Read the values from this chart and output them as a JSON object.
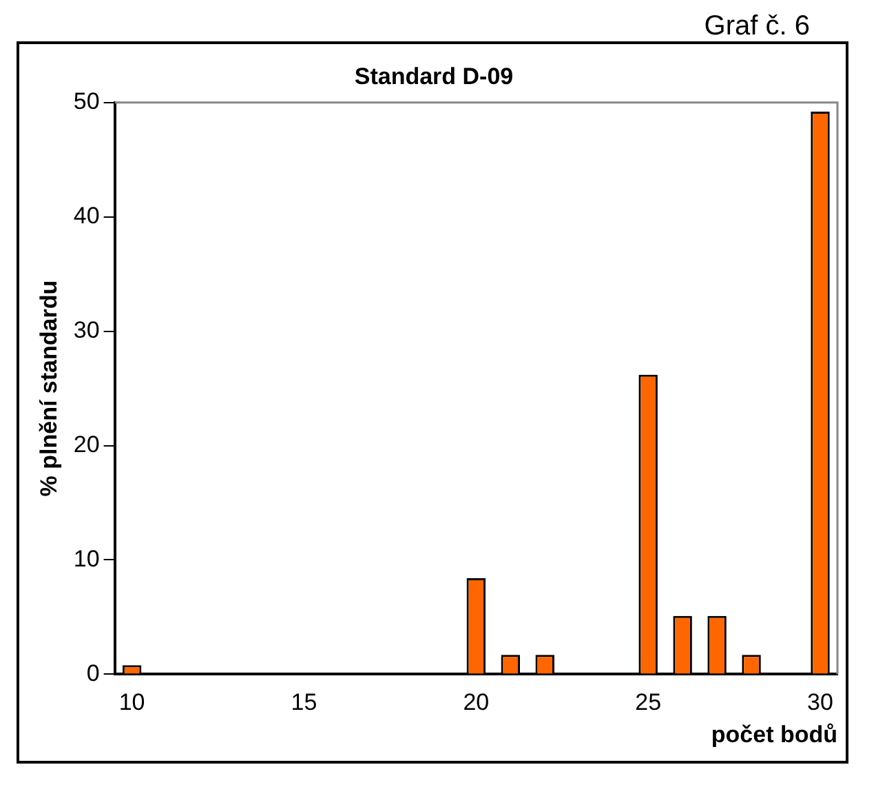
{
  "chart_data": {
    "type": "bar",
    "title": "Standard D-09",
    "xlabel": "počet bodů",
    "ylabel": "% plnění standardu",
    "annotations": [
      "Graf č. 6"
    ],
    "categories": [
      "10",
      null,
      null,
      null,
      null,
      "15",
      null,
      null,
      null,
      null,
      "20",
      null,
      null,
      null,
      null,
      "25",
      null,
      null,
      null,
      null,
      "30"
    ],
    "values": [
      0.8,
      0,
      0,
      0,
      0,
      0,
      0,
      0,
      0,
      0,
      8.4,
      1.7,
      1.7,
      0,
      0,
      26.2,
      5.1,
      5.1,
      1.7,
      0,
      49.2
    ],
    "color": "#ff6600",
    "ylim": [
      0,
      50
    ],
    "yticks": [
      0,
      10,
      20,
      30,
      40,
      50
    ],
    "grid": false,
    "legend": false
  }
}
